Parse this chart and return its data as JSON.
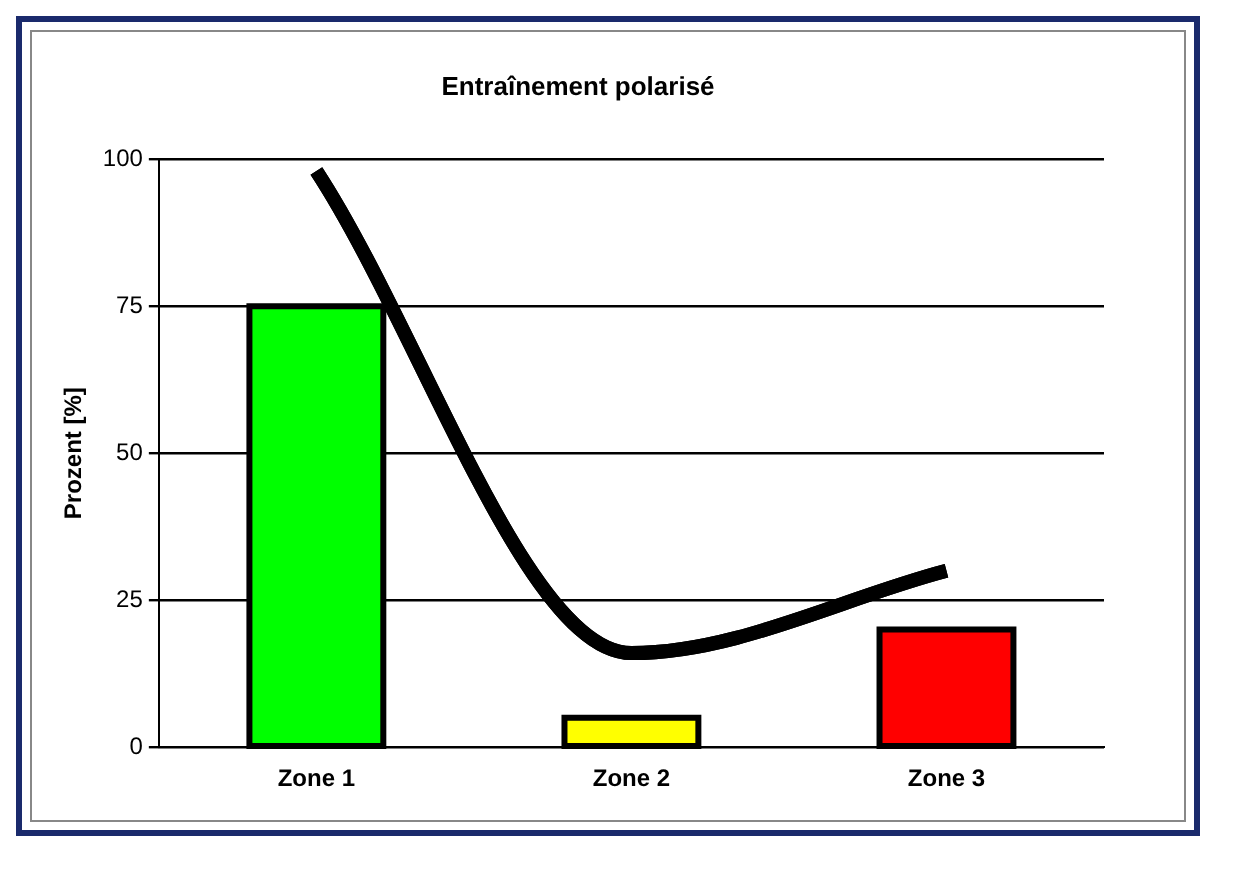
{
  "chart_data": {
    "type": "bar",
    "title": "Entraînement polarisé",
    "ylabel": "Prozent [%]",
    "categories": [
      "Zone 1",
      "Zone 2",
      "Zone 3"
    ],
    "series": [
      {
        "colors": [
          "#00ff00",
          "#ffff00",
          "#ff0000"
        ],
        "values": [
          75,
          5,
          20
        ]
      },
      {
        "type": "line",
        "color": "#000000",
        "values": [
          98,
          16,
          30
        ]
      }
    ],
    "ylim": [
      0,
      100
    ],
    "yticks": [
      0,
      25,
      50,
      75,
      100
    ],
    "grid": "y",
    "legend": false,
    "marker": "none",
    "line_style": "solid"
  }
}
